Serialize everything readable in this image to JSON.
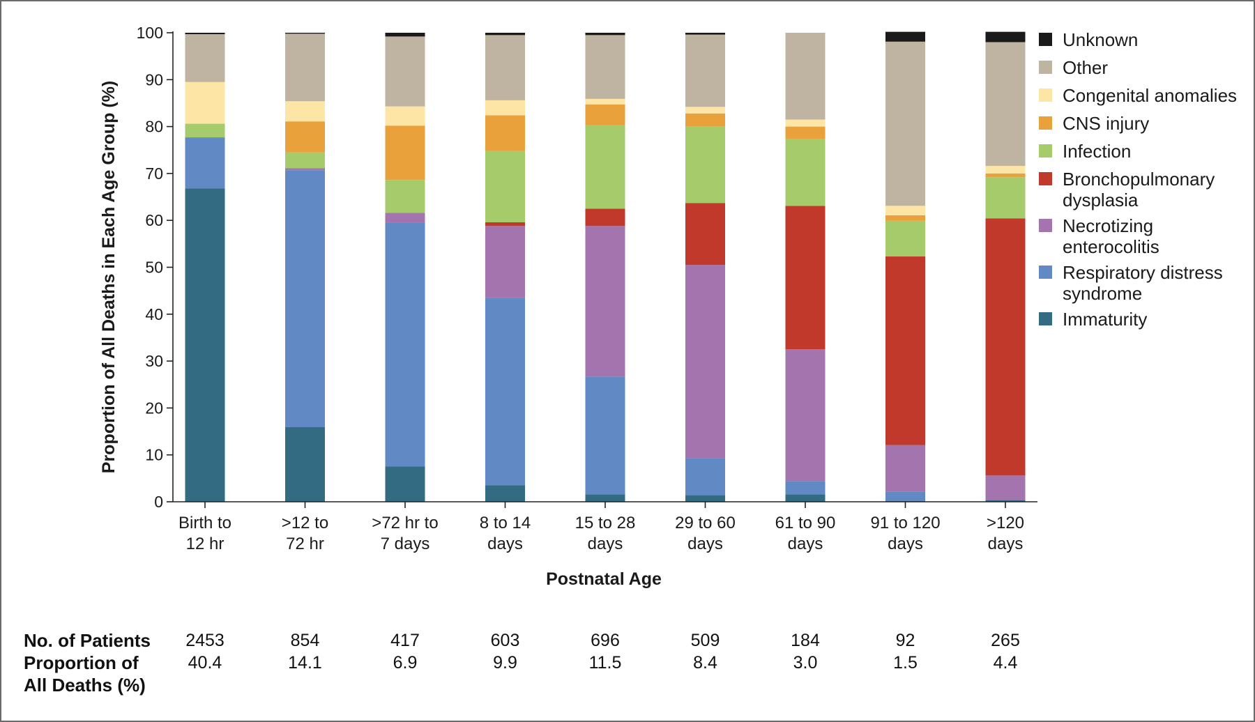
{
  "chart_data": {
    "type": "bar",
    "stacked": true,
    "title": "",
    "xlabel": "Postnatal Age",
    "ylabel": "Proportion of All Deaths in Each Age Group (%)",
    "ylim": [
      0,
      100
    ],
    "yticks": [
      "0",
      "10",
      "20",
      "30",
      "40",
      "50",
      "60",
      "70",
      "80",
      "90",
      "100"
    ],
    "grid": false,
    "legend_position": "right",
    "categories": [
      "Birth to\n12 hr",
      ">12 to\n72 hr",
      ">72 hr to\n7 days",
      "8 to 14\ndays",
      "15 to 28\ndays",
      "29 to 60\ndays",
      "61 to 90\ndays",
      "91 to 120\ndays",
      ">120\ndays"
    ],
    "series": [
      {
        "name": "Immaturity",
        "color": "#336b82",
        "values": [
          66.8,
          15.9,
          7.5,
          3.5,
          1.6,
          1.4,
          1.6,
          0.2,
          0.3
        ]
      },
      {
        "name": "Respiratory distress\nsyndrome",
        "color": "#6189c3",
        "values": [
          10.9,
          54.8,
          52.0,
          40.0,
          25.1,
          7.9,
          2.8,
          2.0,
          0.0
        ]
      },
      {
        "name": "Necrotizing\nenterocolitis",
        "color": "#a374ae",
        "values": [
          0.0,
          0.4,
          2.1,
          15.3,
          32.1,
          41.2,
          28.1,
          9.9,
          5.3
        ]
      },
      {
        "name": "Bronchopulmonary\ndysplasia",
        "color": "#c0392b",
        "values": [
          0.0,
          0.0,
          0.0,
          0.8,
          3.7,
          13.2,
          30.6,
          40.2,
          54.8
        ]
      },
      {
        "name": "Infection",
        "color": "#a6cb6b",
        "values": [
          2.9,
          3.4,
          7.0,
          15.2,
          17.8,
          16.3,
          14.2,
          7.6,
          8.8
        ]
      },
      {
        "name": "CNS injury",
        "color": "#e9a23b",
        "values": [
          0.0,
          6.6,
          11.6,
          7.6,
          4.4,
          2.8,
          2.7,
          1.2,
          0.8
        ]
      },
      {
        "name": "Congenital anomalies",
        "color": "#fde6a5",
        "values": [
          8.9,
          4.3,
          4.1,
          3.2,
          1.2,
          1.4,
          1.5,
          2.0,
          1.6
        ]
      },
      {
        "name": "Other",
        "color": "#bfb4a1",
        "values": [
          10.2,
          14.4,
          14.9,
          13.9,
          13.6,
          15.4,
          18.5,
          35.0,
          26.4
        ]
      },
      {
        "name": "Unknown",
        "color": "#1a1a1a",
        "values": [
          0.3,
          0.2,
          0.8,
          0.5,
          0.5,
          0.4,
          0.0,
          2.1,
          2.2
        ]
      }
    ],
    "table": {
      "row1_label": "No. of Patients",
      "row2_label": "Proportion of\nAll Deaths (%)",
      "patients": [
        "2453",
        "854",
        "417",
        "603",
        "696",
        "509",
        "184",
        "92",
        "265"
      ],
      "proportion": [
        "40.4",
        "14.1",
        "6.9",
        "9.9",
        "11.5",
        "8.4",
        "3.0",
        "1.5",
        "4.4"
      ]
    }
  }
}
